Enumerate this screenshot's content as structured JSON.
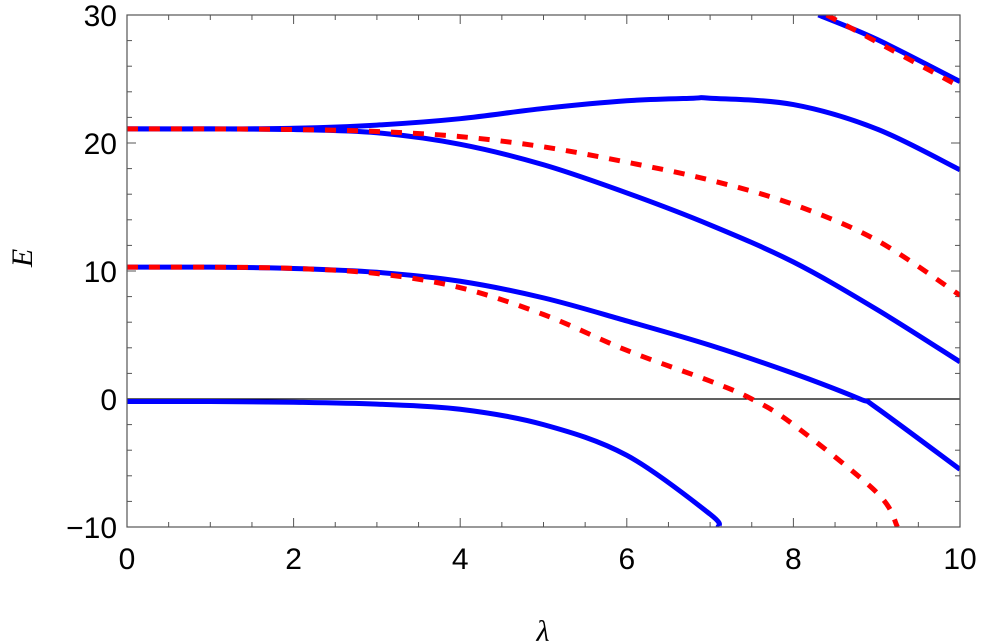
{
  "chart_data": {
    "type": "line",
    "title": "",
    "xlabel": "λ",
    "ylabel": "E",
    "xlim": [
      0,
      10
    ],
    "ylim": [
      -10,
      30
    ],
    "xticks": [
      0,
      2,
      4,
      6,
      8,
      10
    ],
    "yticks": [
      -10,
      0,
      10,
      20,
      30
    ],
    "xtick_labels": [
      "0",
      "2",
      "4",
      "6",
      "8",
      "10"
    ],
    "ytick_labels": [
      "−10",
      "0",
      "10",
      "20",
      "30"
    ],
    "grid": false,
    "reference_line": {
      "y": 0,
      "color": "#000000"
    },
    "colors": {
      "solid": "#0000ff",
      "dashed": "#ff0000"
    },
    "series": [
      {
        "style": "solid",
        "color": "#0000ff",
        "x": [
          0,
          1,
          2,
          3,
          4,
          5,
          6,
          7,
          7.1
        ],
        "y": [
          -0.2,
          -0.2,
          -0.25,
          -0.4,
          -0.8,
          -2.0,
          -4.4,
          -9.0,
          -10
        ]
      },
      {
        "style": "solid",
        "color": "#0000ff",
        "x": [
          0,
          1,
          2,
          3,
          4,
          5,
          6,
          7,
          8,
          8.8,
          9,
          10
        ],
        "y": [
          10.3,
          10.3,
          10.2,
          9.9,
          9.2,
          7.9,
          6.1,
          4.2,
          2.0,
          0,
          -0.7,
          -5.5
        ]
      },
      {
        "style": "dashed",
        "color": "#ff0000",
        "x": [
          0,
          1,
          2,
          3,
          4,
          5,
          6,
          7,
          7.5,
          8,
          9,
          9.25
        ],
        "y": [
          10.3,
          10.3,
          10.2,
          9.8,
          8.7,
          6.6,
          3.8,
          1.4,
          0,
          -2.0,
          -7.3,
          -10
        ]
      },
      {
        "style": "solid",
        "color": "#0000ff",
        "x": [
          0,
          1,
          2,
          3,
          4,
          5,
          6,
          6.8,
          7,
          8,
          9,
          10
        ],
        "y": [
          21.1,
          21.1,
          21.15,
          21.4,
          21.9,
          22.7,
          23.3,
          23.5,
          23.5,
          23.0,
          21.1,
          17.9
        ]
      },
      {
        "style": "solid",
        "color": "#0000ff",
        "x": [
          0,
          1,
          2,
          3,
          4,
          5,
          6,
          7,
          8,
          9,
          10
        ],
        "y": [
          21.1,
          21.1,
          21.05,
          20.8,
          19.9,
          18.3,
          16.1,
          13.6,
          10.7,
          7.0,
          2.9
        ]
      },
      {
        "style": "dashed",
        "color": "#ff0000",
        "x": [
          0,
          1,
          2,
          3,
          4,
          5,
          6,
          7,
          8,
          9,
          10
        ],
        "y": [
          21.1,
          21.1,
          21.05,
          20.9,
          20.5,
          19.7,
          18.5,
          17.1,
          15.2,
          12.4,
          8.1
        ]
      },
      {
        "style": "solid",
        "color": "#0000ff",
        "x": [
          8.3,
          9,
          10
        ],
        "y": [
          30,
          28.1,
          24.8
        ]
      },
      {
        "style": "dashed",
        "color": "#ff0000",
        "x": [
          8.4,
          9,
          10
        ],
        "y": [
          30,
          27.9,
          24.4
        ]
      }
    ]
  }
}
